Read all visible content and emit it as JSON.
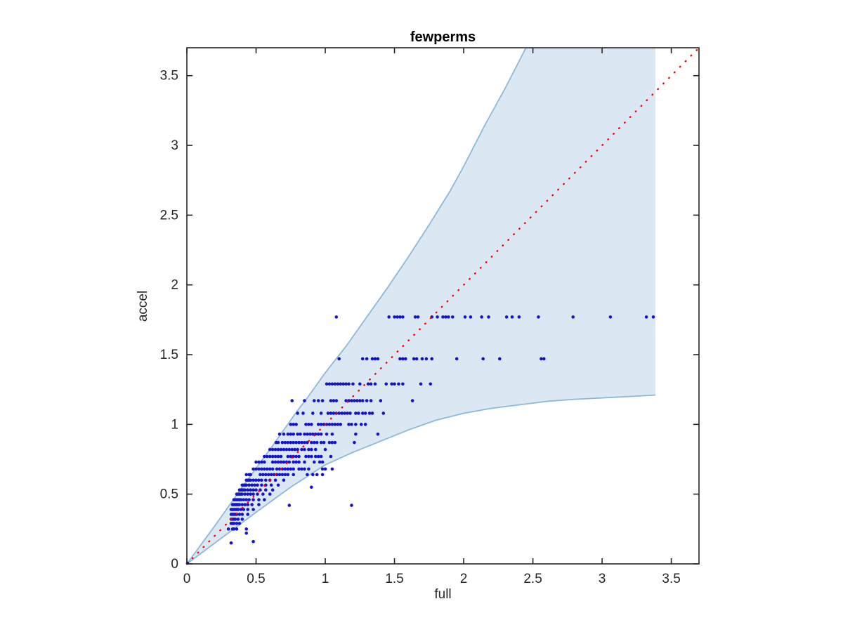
{
  "chart_data": {
    "type": "scatter",
    "title": "fewperms",
    "xlabel": "full",
    "ylabel": "accel",
    "xlim": [
      0,
      3.7
    ],
    "ylim": [
      0,
      3.7
    ],
    "grid": false,
    "legend": null,
    "xticks": {
      "values": [
        0,
        0.5,
        1,
        1.5,
        2,
        2.5,
        3,
        3.5
      ],
      "labels": [
        "0",
        "0.5",
        "1",
        "1.5",
        "2",
        "2.5",
        "3",
        "3.5"
      ]
    },
    "yticks": {
      "values": [
        0,
        0.5,
        1,
        1.5,
        2,
        2.5,
        3,
        3.5
      ],
      "labels": [
        "0",
        "0.5",
        "1",
        "1.5",
        "2",
        "2.5",
        "3",
        "3.5"
      ]
    },
    "colors": {
      "axis": "#262626",
      "tick_text": "#262626",
      "marker": "#1414cc",
      "identity_line": "#ff0000",
      "region_fill": "#dbe8f4",
      "region_edge": "#8cb8da",
      "background": "#ffffff"
    },
    "identity_line": {
      "style": "dotted",
      "from": [
        0,
        0
      ],
      "to": [
        3.7,
        3.7
      ]
    },
    "confidence_region": {
      "x_max": 3.385,
      "upper": [
        [
          0,
          0
        ],
        [
          0.2,
          0.27
        ],
        [
          0.4,
          0.55
        ],
        [
          0.6,
          0.82
        ],
        [
          0.8,
          1.1
        ],
        [
          0.87,
          1.19
        ],
        [
          1.0,
          1.37
        ],
        [
          1.15,
          1.56
        ],
        [
          1.3,
          1.77
        ],
        [
          1.45,
          1.98
        ],
        [
          1.6,
          2.2
        ],
        [
          1.75,
          2.43
        ],
        [
          1.9,
          2.67
        ],
        [
          2.0,
          2.85
        ],
        [
          2.15,
          3.14
        ],
        [
          2.3,
          3.41
        ],
        [
          2.45,
          3.7
        ]
      ],
      "lower": [
        [
          0,
          0
        ],
        [
          0.25,
          0.185
        ],
        [
          0.5,
          0.37
        ],
        [
          0.75,
          0.55
        ],
        [
          1.0,
          0.71
        ],
        [
          1.2,
          0.8
        ],
        [
          1.4,
          0.88
        ],
        [
          1.6,
          0.96
        ],
        [
          1.8,
          1.03
        ],
        [
          2.0,
          1.08
        ],
        [
          2.2,
          1.115
        ],
        [
          2.4,
          1.14
        ],
        [
          2.6,
          1.165
        ],
        [
          2.8,
          1.18
        ],
        [
          3.0,
          1.19
        ],
        [
          3.2,
          1.2
        ],
        [
          3.385,
          1.21
        ]
      ]
    },
    "scatter": {
      "marker_radius_px": 2.3,
      "bands": [
        {
          "y": 0.25,
          "x": [
            0.33,
            0.34,
            0.36,
            0.43
          ]
        },
        {
          "y": 0.29,
          "x": [
            0.32,
            0.33,
            0.34,
            0.36,
            0.38
          ]
        },
        {
          "y": 0.32,
          "x": [
            0.32,
            0.33,
            0.34,
            0.35,
            0.37,
            0.4
          ]
        },
        {
          "y": 0.355,
          "x": [
            0.32,
            0.33,
            0.34,
            0.35,
            0.36,
            0.38,
            0.4,
            0.44
          ]
        },
        {
          "y": 0.39,
          "x": [
            0.32,
            0.33,
            0.34,
            0.35,
            0.36,
            0.37,
            0.39,
            0.41,
            0.44,
            0.48
          ]
        },
        {
          "y": 0.425,
          "x": [
            0.33,
            0.34,
            0.35,
            0.36,
            0.37,
            0.38,
            0.4,
            0.42,
            0.44,
            0.47,
            0.52
          ]
        },
        {
          "y": 0.46,
          "x": [
            0.34,
            0.35,
            0.36,
            0.37,
            0.38,
            0.39,
            0.41,
            0.43,
            0.45,
            0.48,
            0.52,
            0.56
          ]
        },
        {
          "y": 0.5,
          "x": [
            0.36,
            0.37,
            0.38,
            0.39,
            0.4,
            0.42,
            0.44,
            0.46,
            0.48,
            0.51,
            0.55,
            0.6
          ]
        },
        {
          "y": 0.53,
          "x": [
            0.38,
            0.39,
            0.4,
            0.41,
            0.42,
            0.44,
            0.46,
            0.48,
            0.5,
            0.53,
            0.57,
            0.62
          ]
        },
        {
          "y": 0.565,
          "x": [
            0.4,
            0.41,
            0.42,
            0.43,
            0.45,
            0.47,
            0.49,
            0.51,
            0.54,
            0.57,
            0.61,
            0.66
          ]
        },
        {
          "y": 0.6,
          "x": [
            0.43,
            0.44,
            0.45,
            0.46,
            0.48,
            0.5,
            0.52,
            0.54,
            0.57,
            0.6,
            0.64,
            0.7
          ]
        },
        {
          "y": 0.64,
          "x": [
            0.43,
            0.45,
            0.46,
            0.53,
            0.55,
            0.57,
            0.59,
            0.61,
            0.63,
            0.65,
            0.67,
            0.69,
            0.71,
            0.73,
            0.77,
            0.87,
            0.91,
            0.94,
            0.98
          ]
        },
        {
          "y": 0.68,
          "x": [
            0.48,
            0.5,
            0.52,
            0.54,
            0.56,
            0.58,
            0.6,
            0.62,
            0.65,
            0.67,
            0.69,
            0.71,
            0.73,
            0.75,
            0.77,
            0.81,
            0.83,
            0.85,
            0.88,
            0.98,
            1.0,
            1.05
          ]
        },
        {
          "y": 0.73,
          "x": [
            0.5,
            0.52,
            0.54,
            0.56,
            0.62,
            0.64,
            0.66,
            0.68,
            0.7,
            0.72,
            0.74,
            0.77,
            0.79,
            0.81,
            0.85,
            0.92,
            0.96,
            0.98
          ]
        },
        {
          "y": 0.77,
          "x": [
            0.56,
            0.58,
            0.6,
            0.62,
            0.64,
            0.66,
            0.68,
            0.73,
            0.75,
            0.77,
            0.79,
            0.81,
            0.86,
            0.88,
            0.9,
            0.93,
            0.95,
            0.97,
            1.04
          ]
        },
        {
          "y": 0.82,
          "x": [
            0.6,
            0.62,
            0.64,
            0.66,
            0.68,
            0.7,
            0.72,
            0.74,
            0.76,
            0.78,
            0.8,
            0.83,
            0.85,
            0.88,
            0.9,
            0.93,
            1.0
          ]
        },
        {
          "y": 0.87,
          "x": [
            0.645,
            0.66,
            0.69,
            0.71,
            0.73,
            0.75,
            0.77,
            0.79,
            0.81,
            0.83,
            0.85,
            0.87,
            0.9,
            0.92,
            0.94,
            0.97,
            0.99,
            1.03,
            1.05,
            1.07,
            1.21
          ]
        },
        {
          "y": 0.93,
          "x": [
            0.67,
            0.7,
            0.73,
            0.75,
            0.77,
            0.8,
            0.82,
            0.85,
            0.87,
            0.89,
            0.91,
            0.93,
            0.95,
            0.97,
            1.01,
            1.05,
            1.22,
            1.38
          ]
        },
        {
          "y": 1.0,
          "x": [
            0.75,
            0.77,
            0.79,
            0.86,
            0.88,
            0.9,
            0.95,
            0.97,
            0.99,
            1.01,
            1.03,
            1.05,
            1.07,
            1.09,
            1.11,
            1.17,
            1.19,
            1.22,
            1.26,
            1.29
          ]
        },
        {
          "y": 1.08,
          "x": [
            0.8,
            0.84,
            0.91,
            0.97,
            1.02,
            1.04,
            1.06,
            1.08,
            1.1,
            1.12,
            1.14,
            1.16,
            1.18,
            1.22,
            1.24,
            1.27,
            1.29,
            1.32,
            1.34,
            1.42
          ]
        },
        {
          "y": 1.17,
          "x": [
            0.76,
            0.85,
            0.92,
            0.95,
            0.98,
            1.04,
            1.06,
            1.08,
            1.15,
            1.17,
            1.19,
            1.21,
            1.23,
            1.25,
            1.27,
            1.3,
            1.33,
            1.4,
            1.63
          ]
        },
        {
          "y": 1.29,
          "x": [
            1.01,
            1.03,
            1.05,
            1.07,
            1.09,
            1.11,
            1.13,
            1.15,
            1.17,
            1.2,
            1.25,
            1.31,
            1.33,
            1.36,
            1.44,
            1.48,
            1.5,
            1.53,
            1.56,
            1.69,
            1.76
          ]
        },
        {
          "y": 1.47,
          "x": [
            1.1,
            1.27,
            1.3,
            1.34,
            1.36,
            1.38,
            1.54,
            1.56,
            1.58,
            1.64,
            1.66,
            1.7,
            1.73,
            1.77,
            1.95,
            2.14,
            2.26,
            2.56,
            2.58
          ]
        },
        {
          "y": 1.77,
          "x": [
            1.08,
            1.46,
            1.5,
            1.52,
            1.54,
            1.56,
            1.65,
            1.67,
            1.77,
            1.81,
            1.85,
            1.87,
            1.89,
            1.92,
            2.01,
            2.05,
            2.13,
            2.18,
            2.31,
            2.35,
            2.4,
            2.54,
            2.79,
            3.06,
            3.32,
            3.37
          ]
        }
      ],
      "outliers": [
        [
          0.005,
          0.005
        ],
        [
          0.32,
          0.15
        ],
        [
          0.43,
          0.22
        ],
        [
          0.48,
          0.16
        ],
        [
          0.3,
          0.25
        ],
        [
          0.74,
          0.42
        ],
        [
          0.9,
          0.55
        ],
        [
          1.19,
          0.42
        ]
      ]
    }
  }
}
